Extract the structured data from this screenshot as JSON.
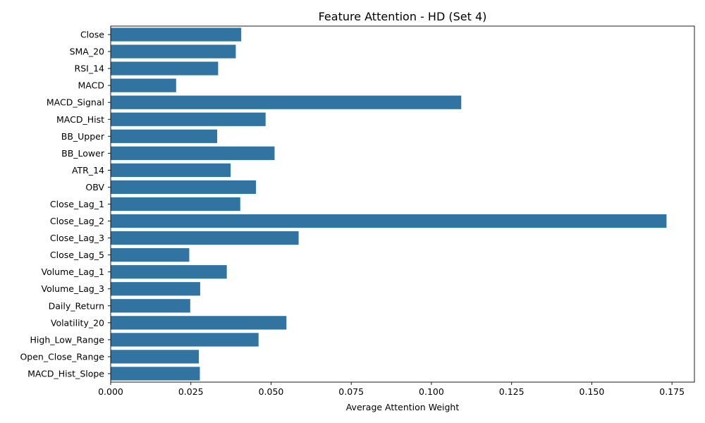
{
  "chart_data": {
    "type": "bar",
    "orientation": "horizontal",
    "title": "Feature Attention - HD (Set 4)",
    "xlabel": "Average Attention Weight",
    "ylabel": "",
    "xlim": [
      0.0,
      0.182
    ],
    "x_ticks": [
      "0.000",
      "0.025",
      "0.050",
      "0.075",
      "0.100",
      "0.125",
      "0.150",
      "0.175"
    ],
    "bar_color": "#3274a1",
    "grid": false,
    "categories": [
      "Close",
      "SMA_20",
      "RSI_14",
      "MACD",
      "MACD_Signal",
      "MACD_Hist",
      "BB_Upper",
      "BB_Lower",
      "ATR_14",
      "OBV",
      "Close_Lag_1",
      "Close_Lag_2",
      "Close_Lag_3",
      "Close_Lag_5",
      "Volume_Lag_1",
      "Volume_Lag_3",
      "Daily_Return",
      "Volatility_20",
      "High_Low_Range",
      "Open_Close_Range",
      "MACD_Hist_Slope"
    ],
    "values": [
      0.0407,
      0.039,
      0.0335,
      0.0204,
      0.1093,
      0.0483,
      0.0332,
      0.0511,
      0.0374,
      0.0453,
      0.0404,
      0.1733,
      0.0586,
      0.0245,
      0.0362,
      0.0279,
      0.0248,
      0.0548,
      0.0461,
      0.0275,
      0.0278
    ]
  }
}
